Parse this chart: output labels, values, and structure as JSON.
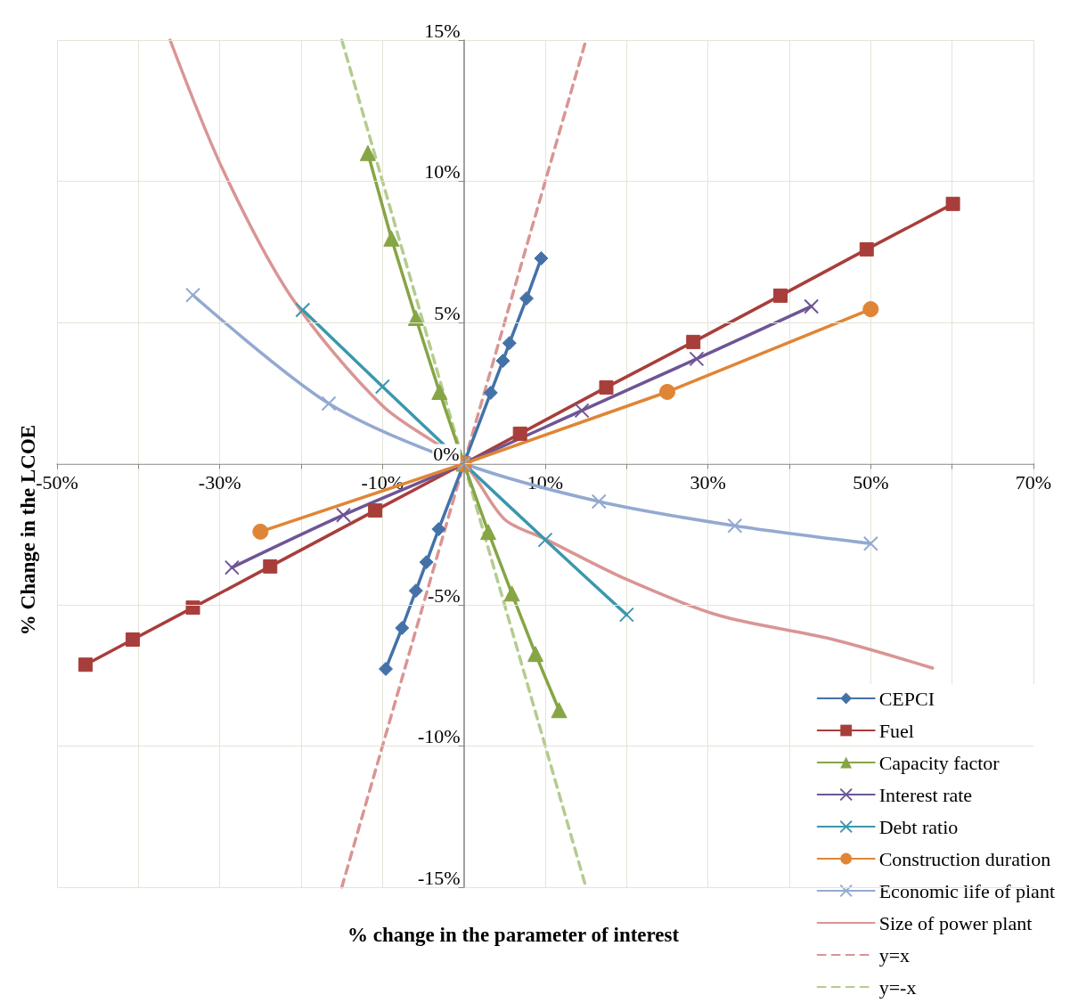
{
  "chart_data": {
    "type": "line",
    "xlabel": "% change in the parameter of interest",
    "ylabel": "% Change in the LCOE",
    "xlim": [
      -50,
      70
    ],
    "ylim": [
      -15,
      15
    ],
    "xticks": [
      {
        "value": -50,
        "label": "-50%"
      },
      {
        "value": -40,
        "label": null
      },
      {
        "value": -30,
        "label": "-30%"
      },
      {
        "value": -20,
        "label": null
      },
      {
        "value": -10,
        "label": "-10%"
      },
      {
        "value": 0,
        "label": null
      },
      {
        "value": 10,
        "label": "10%"
      },
      {
        "value": 20,
        "label": null
      },
      {
        "value": 30,
        "label": "30%"
      },
      {
        "value": 40,
        "label": null
      },
      {
        "value": 50,
        "label": "50%"
      },
      {
        "value": 60,
        "label": null
      },
      {
        "value": 70,
        "label": "70%"
      }
    ],
    "yticks": [
      {
        "value": -15,
        "label": "-15%"
      },
      {
        "value": -10,
        "label": "-10%"
      },
      {
        "value": -5,
        "label": "-5%"
      },
      {
        "value": 0,
        "label": "0%"
      },
      {
        "value": 5,
        "label": "5%"
      },
      {
        "value": 10,
        "label": "10%"
      },
      {
        "value": 15,
        "label": "15%"
      }
    ],
    "grid": true,
    "legend": "bottom right",
    "line_style": "solid",
    "series": [
      {
        "name": "CEPCI",
        "color": "#4472a8",
        "marker": "diamond",
        "x": [
          -9.6,
          -7.6,
          -5.9,
          -4.6,
          -3.1,
          0,
          3.3,
          4.8,
          5.6,
          7.7,
          9.5
        ],
        "values": [
          -7.27,
          -5.82,
          -4.5,
          -3.49,
          -2.32,
          0,
          2.51,
          3.64,
          4.27,
          5.85,
          7.27
        ]
      },
      {
        "name": "Fuel",
        "color": "#a83e3b",
        "marker": "square",
        "x": [
          -46.5,
          -40.7,
          -33.3,
          -23.8,
          -10.9,
          0,
          6.9,
          17.5,
          28.2,
          38.9,
          49.5,
          60.1
        ],
        "values": [
          -7.12,
          -6.23,
          -5.1,
          -3.64,
          -1.66,
          0,
          1.06,
          2.7,
          4.31,
          5.95,
          7.59,
          9.2
        ]
      },
      {
        "name": "Capacity factor",
        "color": "#86a545",
        "marker": "triangle",
        "x": [
          -11.8,
          -8.9,
          -5.9,
          -3.0,
          0,
          3.0,
          5.9,
          8.8,
          11.7
        ],
        "values": [
          11.0,
          7.97,
          5.16,
          2.54,
          0,
          -2.42,
          -4.6,
          -6.74,
          -8.73
        ]
      },
      {
        "name": "Interest rate",
        "color": "#6e5595",
        "marker": "cross",
        "x": [
          -28.5,
          -14.8,
          0,
          14.5,
          28.6,
          42.7
        ],
        "values": [
          -3.68,
          -1.82,
          0,
          1.88,
          3.71,
          5.57
        ]
      },
      {
        "name": "Debt ratio",
        "color": "#3b97ad",
        "marker": "cross",
        "x": [
          -19.8,
          -10.0,
          0,
          10.0,
          20.0
        ],
        "values": [
          5.44,
          2.73,
          0,
          -2.7,
          -5.35
        ]
      },
      {
        "name": "Construction duration",
        "color": "#e08535",
        "marker": "circle",
        "x": [
          -25,
          0,
          25,
          50
        ],
        "values": [
          -2.41,
          0,
          2.54,
          5.47
        ]
      },
      {
        "name": "Economic life of plant",
        "color": "#93a9d1",
        "marker": "cross",
        "x": [
          -33.3,
          -16.6,
          0,
          16.6,
          33.3,
          50
        ],
        "values": [
          5.97,
          2.13,
          0,
          -1.34,
          -2.2,
          -2.83
        ]
      },
      {
        "name": "Size of power plant",
        "color": "#d99594",
        "marker": "none",
        "x": [
          -36.1,
          -29.6,
          -21.2,
          -10,
          0,
          5,
          10,
          20,
          31.4,
          45,
          57.6
        ],
        "values": [
          15,
          10.4,
          5.9,
          2.05,
          0,
          -1.97,
          -2.67,
          -4.1,
          -5.38,
          -6.2,
          -7.24
        ]
      },
      {
        "name": "y=x",
        "color": "#d99594",
        "marker": "none",
        "line_style": "dashed",
        "x": [
          -15,
          15
        ],
        "values": [
          -15,
          15
        ]
      },
      {
        "name": "y=-x",
        "color": "#b3cc8f",
        "marker": "none",
        "line_style": "dashed",
        "x": [
          -15,
          15
        ],
        "values": [
          15,
          -15
        ]
      }
    ]
  }
}
